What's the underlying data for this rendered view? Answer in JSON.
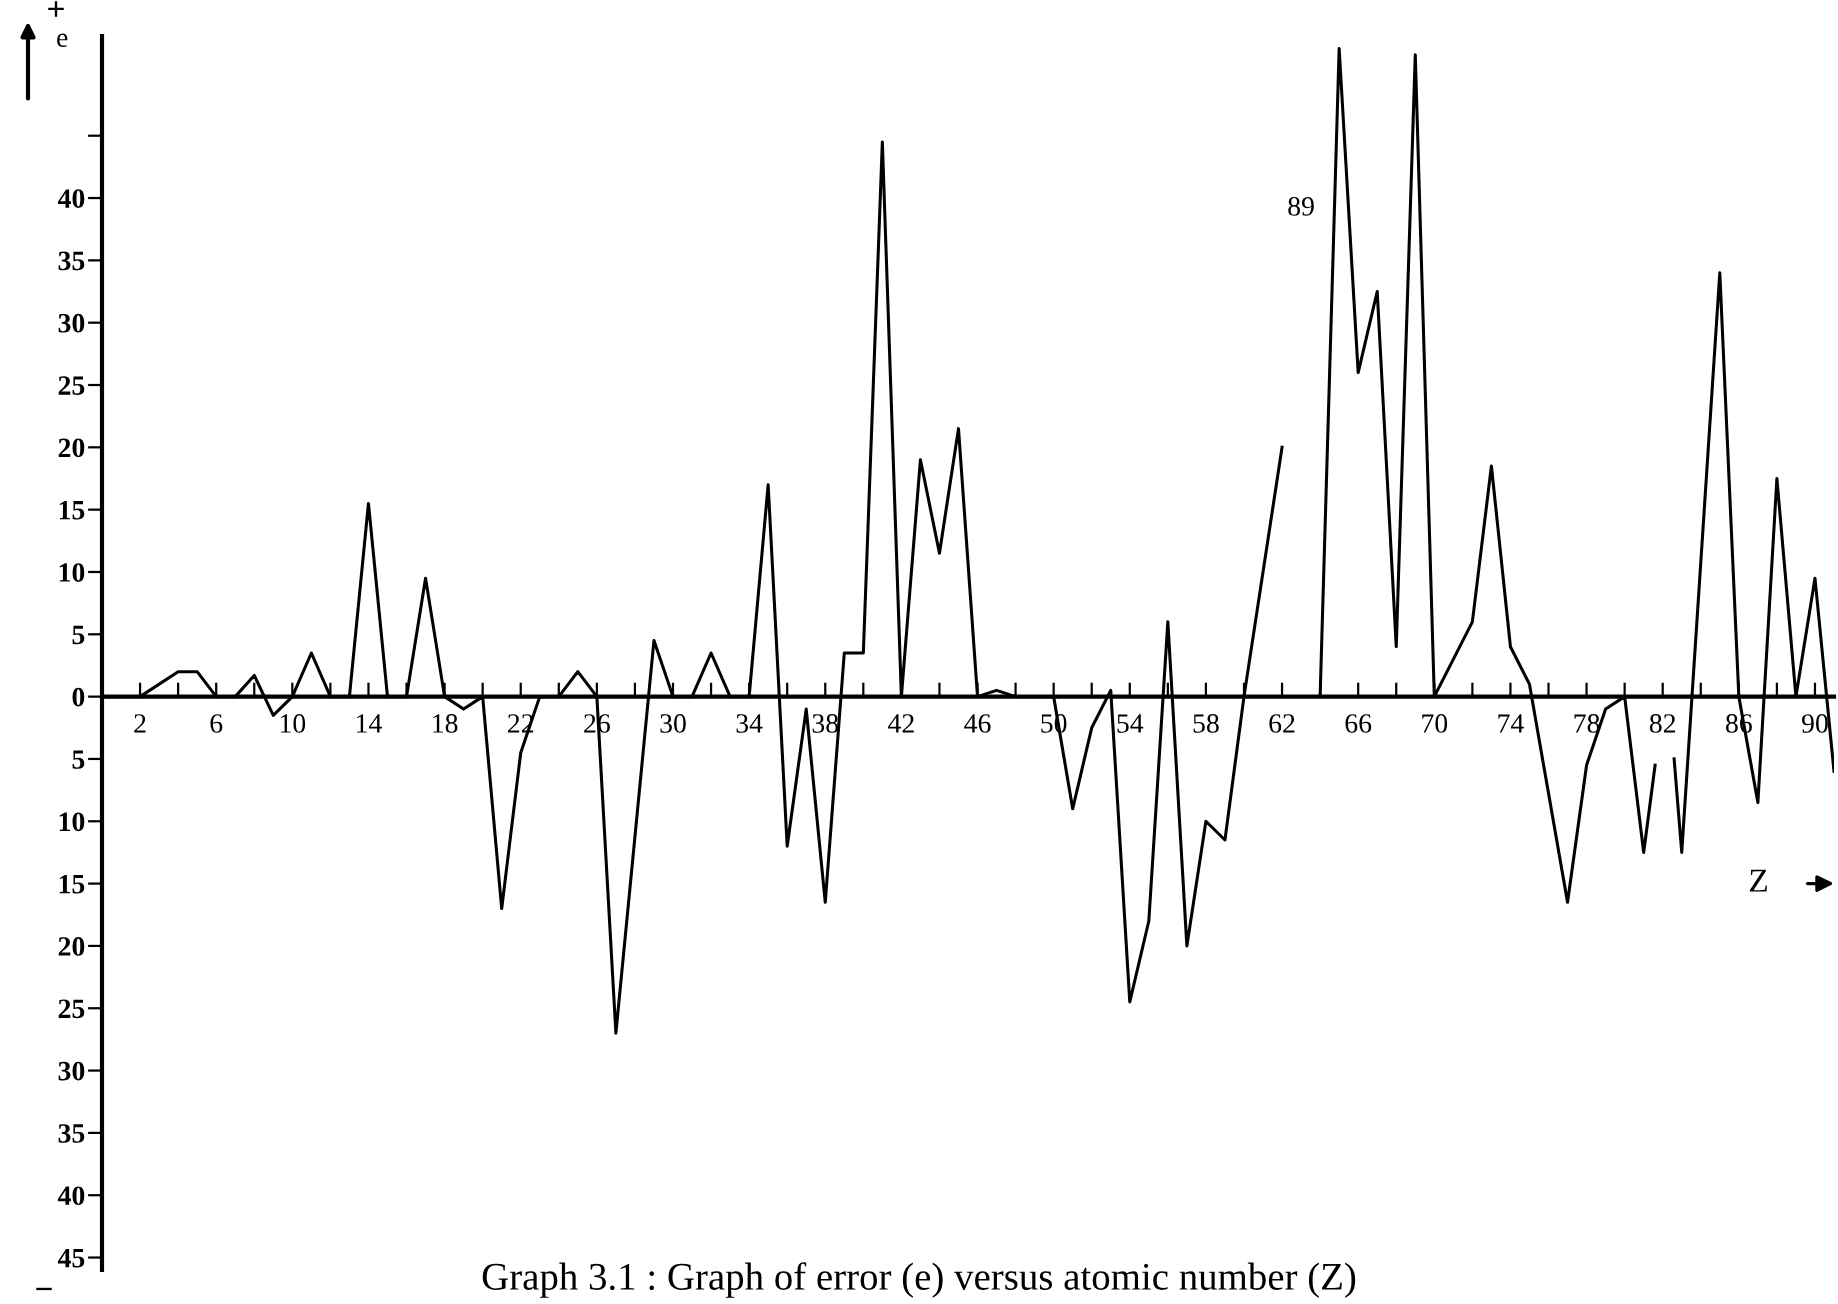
{
  "chart_data": {
    "type": "line",
    "title": "Graph 3.1 : Graph of error (e) versus atomic number (Z)",
    "xlabel": "Z",
    "ylabel": "e",
    "annotations": [
      "+",
      "−",
      {
        "text": "89",
        "x": 63
      }
    ],
    "series": [
      {
        "color": "#000000",
        "x": [
          0,
          2,
          4,
          5,
          6,
          7,
          8,
          9,
          10,
          11,
          12,
          13,
          14,
          15,
          16,
          17,
          18,
          19,
          20,
          21,
          22,
          23,
          24,
          25,
          26,
          27,
          29,
          30,
          31,
          32,
          33,
          34,
          35,
          36,
          37,
          38,
          39,
          40,
          41,
          42,
          43,
          44,
          45,
          46,
          47,
          48,
          50,
          51,
          52,
          53,
          54,
          55,
          56,
          57,
          58,
          59,
          60,
          62,
          63,
          64,
          65,
          66,
          67,
          68,
          69,
          70,
          72,
          73,
          74,
          75,
          77,
          78,
          79,
          80,
          81,
          81.6,
          82,
          82.6,
          83,
          85,
          86,
          87,
          88,
          89,
          90,
          91
        ],
        "values": [
          0,
          0,
          2,
          2,
          0,
          0,
          1.7,
          -1.5,
          0,
          3.5,
          0,
          0,
          15.5,
          0,
          0,
          9.5,
          0,
          -1,
          0,
          -17,
          -4.5,
          0,
          0,
          2,
          0,
          -27,
          4.5,
          0,
          0,
          3.5,
          0,
          0,
          17,
          -12,
          -1,
          -16.5,
          3.5,
          3.5,
          44.5,
          0,
          19,
          11.5,
          21.5,
          0,
          0.5,
          0,
          0,
          -9,
          -2.5,
          0.5,
          -24.5,
          -18,
          6,
          -20,
          -10,
          -11.5,
          0,
          20,
          null,
          0,
          52,
          26,
          32.5,
          4,
          51.5,
          0,
          6,
          18.5,
          4,
          1,
          -16.5,
          -5.5,
          -1,
          0,
          -12.5,
          -5.5,
          null,
          -5,
          -12.5,
          34,
          0,
          -8.5,
          17.5,
          0,
          9.5,
          -6
        ]
      }
    ],
    "xlim": [
      0,
      91
    ],
    "ylim": [
      -46,
      53
    ],
    "xticks": [
      {
        "value": 2,
        "label": "2"
      },
      {
        "value": 4,
        "label": null
      },
      {
        "value": 6,
        "label": "6"
      },
      {
        "value": 8,
        "label": null
      },
      {
        "value": 10,
        "label": "10"
      },
      {
        "value": 12,
        "label": null
      },
      {
        "value": 14,
        "label": "14"
      },
      {
        "value": 16,
        "label": null
      },
      {
        "value": 18,
        "label": "18"
      },
      {
        "value": 20,
        "label": null
      },
      {
        "value": 22,
        "label": "22"
      },
      {
        "value": 24,
        "label": null
      },
      {
        "value": 26,
        "label": "26"
      },
      {
        "value": 28,
        "label": null
      },
      {
        "value": 30,
        "label": "30"
      },
      {
        "value": 32,
        "label": null
      },
      {
        "value": 34,
        "label": "34"
      },
      {
        "value": 36,
        "label": null
      },
      {
        "value": 38,
        "label": "38"
      },
      {
        "value": 40,
        "label": null
      },
      {
        "value": 42,
        "label": "42"
      },
      {
        "value": 44,
        "label": null
      },
      {
        "value": 46,
        "label": "46"
      },
      {
        "value": 48,
        "label": null
      },
      {
        "value": 50,
        "label": "50"
      },
      {
        "value": 52,
        "label": null
      },
      {
        "value": 54,
        "label": "54"
      },
      {
        "value": 56,
        "label": null
      },
      {
        "value": 58,
        "label": "58"
      },
      {
        "value": 60,
        "label": null
      },
      {
        "value": 62,
        "label": "62"
      },
      {
        "value": 64,
        "label": null
      },
      {
        "value": 66,
        "label": "66"
      },
      {
        "value": 68,
        "label": null
      },
      {
        "value": 70,
        "label": "70"
      },
      {
        "value": 72,
        "label": null
      },
      {
        "value": 74,
        "label": "74"
      },
      {
        "value": 76,
        "label": null
      },
      {
        "value": 78,
        "label": "78"
      },
      {
        "value": 80,
        "label": null
      },
      {
        "value": 82,
        "label": "82"
      },
      {
        "value": 84,
        "label": null
      },
      {
        "value": 86,
        "label": "86"
      },
      {
        "value": 88,
        "label": null
      },
      {
        "value": 90,
        "label": "90"
      }
    ],
    "yticks": [
      {
        "value": 45,
        "label": null
      },
      40,
      35,
      30,
      25,
      20,
      15,
      10,
      5,
      0,
      {
        "value": -5,
        "label": "5"
      },
      {
        "value": -10,
        "label": "10"
      },
      {
        "value": -15,
        "label": "15"
      },
      {
        "value": -20,
        "label": "20"
      },
      {
        "value": -25,
        "label": "25"
      },
      {
        "value": -30,
        "label": "30"
      },
      {
        "value": -35,
        "label": "35"
      },
      {
        "value": -40,
        "label": "40"
      },
      {
        "value": -45,
        "label": "45"
      }
    ],
    "grid": false,
    "marker": "none",
    "line_style": "solid"
  }
}
